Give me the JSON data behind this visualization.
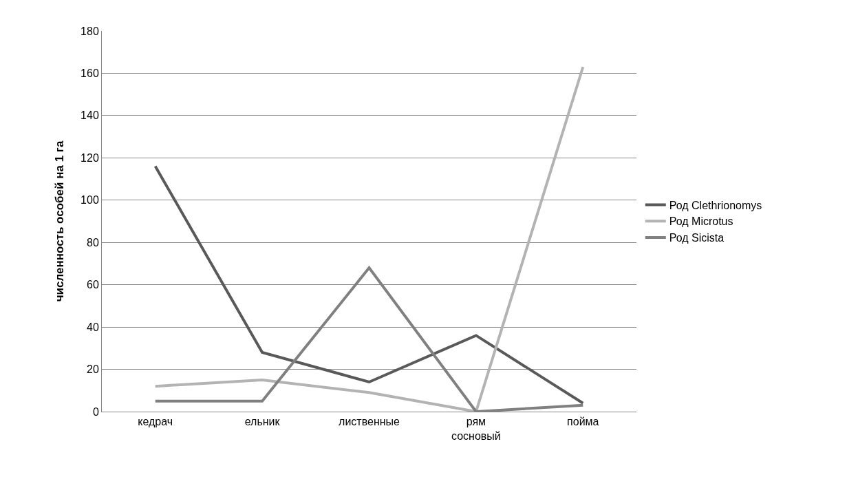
{
  "chart_data": {
    "type": "line",
    "ylabel": "численность особей на 1 га",
    "categories": [
      "кедрач",
      "ельник",
      "лиственные",
      "рям сосновый",
      "пойма"
    ],
    "series": [
      {
        "name": "Род Clethrionomys",
        "color": "#595959",
        "values": [
          116,
          28,
          14,
          36,
          4
        ]
      },
      {
        "name": "Род Microtus",
        "color": "#b3b3b3",
        "values": [
          12,
          15,
          9,
          0,
          163
        ]
      },
      {
        "name": "Род Sicista",
        "color": "#808080",
        "values": [
          5,
          5,
          68,
          0,
          3
        ]
      }
    ],
    "ylim": [
      0,
      180
    ],
    "yticks": [
      0,
      20,
      40,
      60,
      80,
      100,
      120,
      140,
      160,
      180
    ],
    "grid": "y",
    "legend": "right",
    "marker": "none",
    "line_style": "solid"
  }
}
